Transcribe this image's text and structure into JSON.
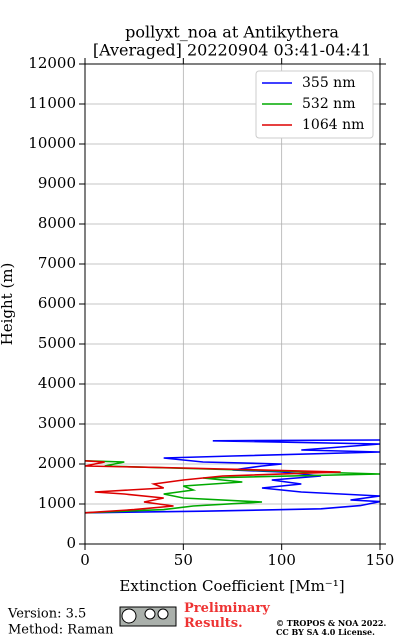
{
  "chart_data": {
    "type": "line",
    "title": "pollyxt_noa at Antikythera",
    "subtitle": "[Averaged] 20220904 03:41-04:41",
    "x_label": "Extinction Coefficient [Mm⁻¹]",
    "y_label": "Height (m)",
    "xlim": [
      0,
      150
    ],
    "xticks": [
      0,
      50,
      100,
      150
    ],
    "ylim": [
      0,
      12000
    ],
    "yticks": [
      0,
      1000,
      2000,
      3000,
      4000,
      5000,
      6000,
      7000,
      8000,
      9000,
      10000,
      11000,
      12000
    ],
    "grid": true,
    "legend": "upper right",
    "series": [
      {
        "name": "355 nm",
        "color": "#0000ff",
        "x": [
          0,
          60,
          120,
          140,
          150,
          135,
          150,
          110,
          90,
          110,
          95,
          120,
          100,
          75,
          90,
          100,
          60,
          40,
          75,
          150,
          110,
          150,
          65,
          150
        ],
        "y": [
          780,
          820,
          880,
          960,
          1060,
          1100,
          1200,
          1300,
          1400,
          1500,
          1600,
          1700,
          1800,
          1850,
          1950,
          2000,
          2050,
          2150,
          2200,
          2300,
          2350,
          2500,
          2580,
          2600
        ]
      },
      {
        "name": "532 nm",
        "color": "#00aa00",
        "x": [
          0,
          40,
          55,
          90,
          50,
          40,
          55,
          50,
          80,
          60,
          150,
          80,
          10,
          20,
          0
        ],
        "y": [
          780,
          860,
          950,
          1050,
          1150,
          1250,
          1350,
          1450,
          1550,
          1650,
          1750,
          1850,
          1950,
          2050,
          2080
        ]
      },
      {
        "name": "1064 nm",
        "color": "#dd0000",
        "x": [
          0,
          25,
          45,
          30,
          40,
          20,
          5,
          40,
          35,
          50,
          70,
          130,
          50,
          0,
          10,
          0
        ],
        "y": [
          780,
          860,
          950,
          1050,
          1150,
          1250,
          1300,
          1400,
          1500,
          1600,
          1700,
          1800,
          1900,
          1950,
          2050,
          2080
        ]
      }
    ]
  },
  "footer": {
    "version": "Version: 3.5",
    "method": "Method: Raman",
    "preliminary": "Preliminary Results.",
    "copyright": "© TROPOS & NOA 2022.",
    "license": "CC BY SA 4.0 License."
  }
}
